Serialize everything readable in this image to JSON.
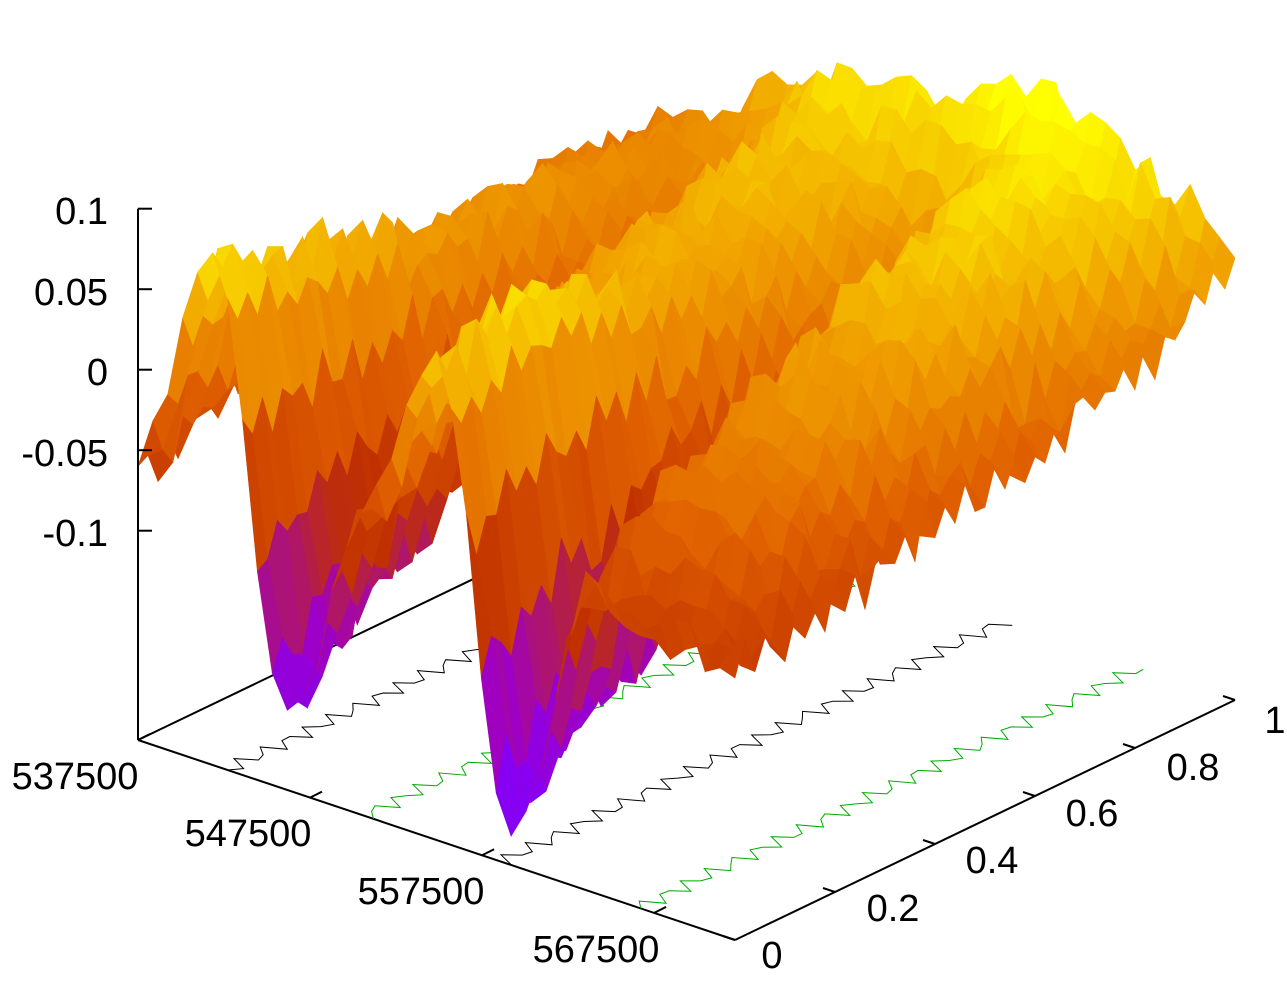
{
  "chart_data": {
    "type": "surface",
    "title": "",
    "xlabel": "",
    "ylabel": "",
    "zlabel": "",
    "xlim": [
      537500,
      572200
    ],
    "ylim": [
      0,
      1
    ],
    "zlim": [
      -0.23,
      0.1
    ],
    "x_ticks": [
      "537500",
      "547500",
      "557500",
      "567500"
    ],
    "x_tick_values": [
      537500,
      547500,
      557500,
      567500
    ],
    "y_ticks": [
      "0",
      "0.2",
      "0.4",
      "0.6",
      "0.8",
      "1"
    ],
    "y_tick_values": [
      0,
      0.2,
      0.4,
      0.6,
      0.8,
      1
    ],
    "z_ticks": [
      "0.1",
      "0.05",
      "0",
      "-0.05",
      "-0.1"
    ],
    "z_tick_values": [
      0.1,
      0.05,
      0,
      -0.05,
      -0.1
    ],
    "grid_x": [
      537500,
      541800,
      546200,
      550500,
      554800,
      559200,
      563500,
      567800,
      572200
    ],
    "grid_y": [
      0,
      0.2,
      0.4,
      0.6,
      0.8,
      1.0
    ],
    "z": [
      [
        -0.06,
        -0.04,
        -0.03,
        -0.02,
        0.0,
        0.0
      ],
      [
        0.08,
        0.06,
        0.04,
        0.03,
        0.02,
        0.02
      ],
      [
        -0.18,
        -0.12,
        -0.06,
        -0.02,
        0.0,
        0.05
      ],
      [
        -0.05,
        0.0,
        0.03,
        0.05,
        0.06,
        0.08
      ],
      [
        0.06,
        0.08,
        0.05,
        0.04,
        0.05,
        0.08
      ],
      [
        -0.2,
        -0.15,
        -0.08,
        -0.02,
        0.02,
        0.1
      ],
      [
        -0.05,
        0.0,
        0.03,
        0.06,
        0.08,
        0.1
      ],
      [
        -0.06,
        0.0,
        0.03,
        0.05,
        0.06,
        0.08
      ],
      [
        -0.06,
        -0.05,
        -0.03,
        -0.02,
        0.0,
        0.04
      ]
    ],
    "palette": [
      "#8000ff",
      "#a000c0",
      "#c03000",
      "#e06000",
      "#f0a000",
      "#ffff00"
    ],
    "grid": false,
    "legend": "none"
  }
}
